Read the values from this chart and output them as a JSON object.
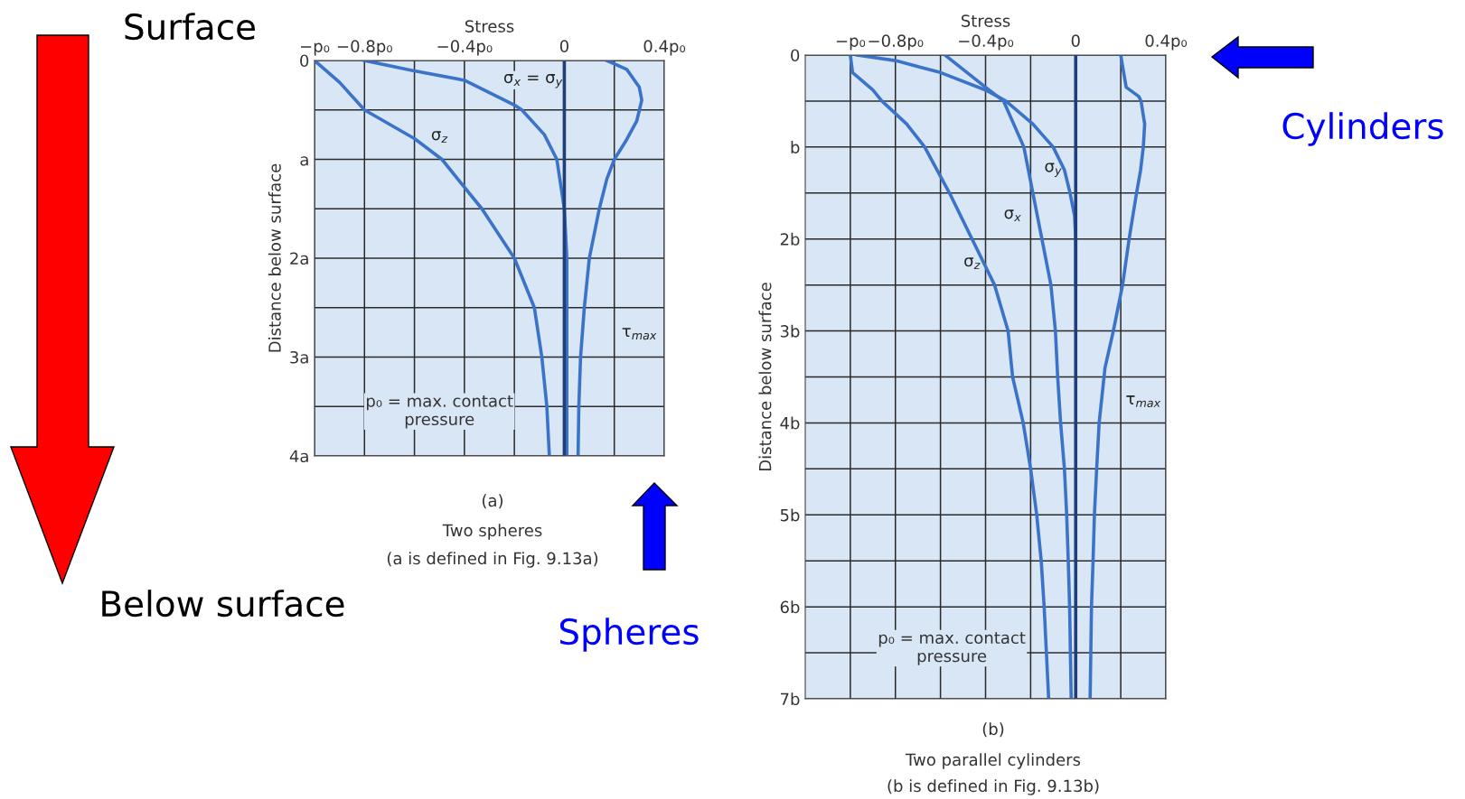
{
  "chart_data": [
    {
      "type": "line",
      "xlabel": "Stress",
      "ylabel": "Distance below surface",
      "xlim": [
        -1,
        0.4
      ],
      "ylim": [
        4,
        0
      ],
      "xticks": [
        {
          "value": -1,
          "label": "−p₀"
        },
        {
          "value": -0.8,
          "label": "−0.8p₀"
        },
        {
          "value": -0.6,
          "label": null
        },
        {
          "value": -0.4,
          "label": "−0.4p₀"
        },
        {
          "value": -0.2,
          "label": null
        },
        0,
        {
          "value": 0.2,
          "label": null
        },
        {
          "value": 0.4,
          "label": "0.4p₀"
        }
      ],
      "yticks": [
        0,
        {
          "value": 0.5,
          "label": null
        },
        {
          "value": 1,
          "label": "a"
        },
        {
          "value": 1.5,
          "label": null
        },
        {
          "value": 2,
          "label": "2a"
        },
        {
          "value": 2.5,
          "label": null
        },
        {
          "value": 3,
          "label": "3a"
        },
        {
          "value": 3.5,
          "label": null
        },
        {
          "value": 4,
          "label": "4a"
        }
      ],
      "grid": true,
      "ref_lines": [
        {
          "axis": "x",
          "value": 0,
          "color": "#1f3f7a"
        }
      ],
      "series": [
        {
          "name": "σ$_{x}$ = σ$_{y}$",
          "color": "#3a73c8",
          "x": [
            -0.8,
            -0.61,
            -0.4,
            -0.2,
            -0.17,
            -0.08,
            -0.03,
            0.0,
            0.01,
            0.01,
            0.01,
            0.01,
            0.01
          ],
          "values": [
            0,
            0.1,
            0.2,
            0.45,
            0.5,
            0.75,
            1,
            1.5,
            2,
            2.5,
            3,
            3.5,
            4
          ]
        },
        {
          "name": "σ$_{z}$",
          "color": "#3a73c8",
          "x": [
            -1,
            -0.9,
            -0.8,
            -0.6,
            -0.49,
            -0.33,
            -0.2,
            -0.12,
            -0.09,
            -0.07,
            -0.06
          ],
          "values": [
            0,
            0.22,
            0.5,
            0.79,
            1,
            1.5,
            2,
            2.5,
            3,
            3.5,
            4
          ]
        },
        {
          "name": "τ$_{max}$",
          "color": "#3a73c8",
          "x": [
            0.17,
            0.25,
            0.3,
            0.31,
            0.29,
            0.245,
            0.2,
            0.17,
            0.14,
            0.1,
            0.08,
            0.065,
            0.058,
            0.055
          ],
          "values": [
            0,
            0.09,
            0.27,
            0.4,
            0.61,
            0.82,
            1,
            1.2,
            1.5,
            2,
            2.5,
            3,
            3.5,
            4
          ]
        }
      ],
      "annotations": [
        "p₀ = max. contact\npressure",
        "(a)",
        "Two spheres",
        "(a is defined in Fig. 9.13a)",
        "Surface",
        "Below surface",
        "Spheres"
      ]
    },
    {
      "type": "line",
      "xlabel": "Stress",
      "ylabel": "Distance below surface",
      "xlim": [
        -1.2,
        0.4
      ],
      "ylim": [
        7,
        0
      ],
      "xticks": [
        {
          "value": -1,
          "label": "−p₀"
        },
        {
          "value": -0.8,
          "label": "−0.8p₀"
        },
        {
          "value": -0.6,
          "label": null
        },
        {
          "value": -0.4,
          "label": "−0.4p₀"
        },
        {
          "value": -0.2,
          "label": null
        },
        0,
        {
          "value": 0.2,
          "label": null
        },
        {
          "value": 0.4,
          "label": "0.4p₀"
        }
      ],
      "yticks": [
        0,
        {
          "value": 0.5,
          "label": null
        },
        {
          "value": 1,
          "label": "b"
        },
        {
          "value": 1.5,
          "label": null
        },
        {
          "value": 2,
          "label": "2b"
        },
        {
          "value": 2.5,
          "label": null
        },
        {
          "value": 3,
          "label": "3b"
        },
        {
          "value": 3.5,
          "label": null
        },
        {
          "value": 4,
          "label": "4b"
        },
        {
          "value": 4.5,
          "label": null
        },
        {
          "value": 5,
          "label": "5b"
        },
        {
          "value": 5.5,
          "label": null
        },
        {
          "value": 6,
          "label": "6b"
        },
        {
          "value": 6.5,
          "label": null
        },
        {
          "value": 7,
          "label": "7b"
        }
      ],
      "grid": true,
      "ref_lines": [
        {
          "axis": "x",
          "value": 0,
          "color": "#1f3f7a"
        }
      ],
      "series": [
        {
          "name": "σ$_{y}$",
          "color": "#3a73c8",
          "x": [
            -0.97,
            -0.8,
            -0.6,
            -0.4,
            -0.31,
            -0.19,
            -0.1,
            -0.05,
            -0.025,
            -0.005,
            0.0,
            0.0
          ],
          "values": [
            0,
            0.06,
            0.19,
            0.38,
            0.5,
            0.75,
            1,
            1.25,
            1.5,
            1.75,
            2,
            2.5
          ]
        },
        {
          "name": "σ$_{x}$",
          "color": "#3a73c8",
          "x": [
            -0.58,
            -0.4,
            -0.32,
            -0.23,
            -0.19,
            -0.15,
            -0.11,
            -0.09,
            -0.08,
            -0.067,
            -0.05,
            -0.04,
            -0.033,
            -0.027,
            -0.02
          ],
          "values": [
            0,
            0.35,
            0.5,
            1,
            1.5,
            2,
            2.5,
            3,
            3.5,
            4,
            4.5,
            5,
            5.5,
            6,
            7
          ]
        },
        {
          "name": "σ$_{z}$",
          "color": "#3a73c8",
          "x": [
            -1,
            -0.99,
            -0.9,
            -0.86,
            -0.75,
            -0.67,
            -0.56,
            -0.46,
            -0.36,
            -0.3,
            -0.28,
            -0.233,
            -0.2,
            -0.173,
            -0.153,
            -0.14,
            -0.13,
            -0.12
          ],
          "values": [
            0,
            0.19,
            0.38,
            0.5,
            0.75,
            1,
            1.5,
            2,
            2.5,
            3,
            3.5,
            4,
            4.5,
            5,
            5.5,
            6,
            6.5,
            7
          ]
        },
        {
          "name": "τ$_{max}$",
          "color": "#3a73c8",
          "x": [
            0.2,
            0.21,
            0.224,
            0.28,
            0.29,
            0.306,
            0.3,
            0.288,
            0.27,
            0.237,
            0.208,
            0.167,
            0.13,
            0.104,
            0.093,
            0.083,
            0.077,
            0.07,
            0.067,
            0.064
          ],
          "values": [
            0,
            0.15,
            0.35,
            0.45,
            0.5,
            0.75,
            1,
            1.25,
            1.5,
            2,
            2.5,
            3,
            3.4,
            4,
            4.5,
            5,
            5.5,
            6,
            6.5,
            7
          ]
        }
      ],
      "annotations": [
        "p₀ = max. contact\npressure",
        "(b)",
        "Two parallel cylinders",
        "(b is defined in Fig. 9.13b)",
        "Cylinders"
      ]
    }
  ]
}
